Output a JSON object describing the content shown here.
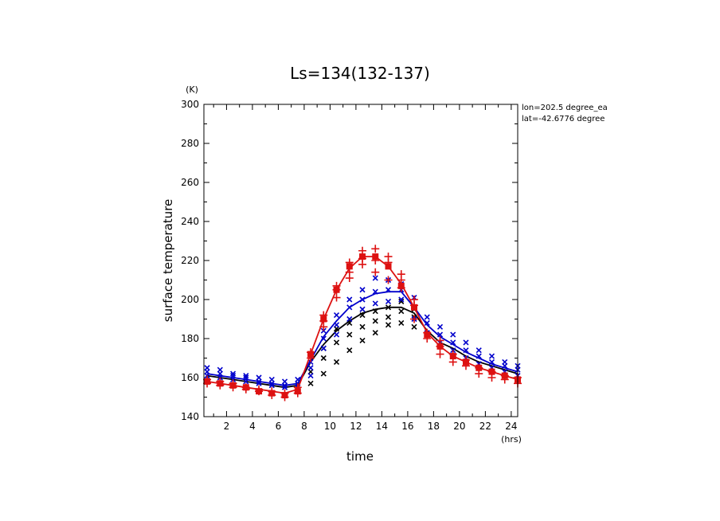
{
  "chart_data": {
    "type": "line",
    "title": "Ls=134(132-137)",
    "xlabel": "time",
    "ylabel": "surface temperature",
    "x_unit": "(hrs)",
    "y_unit": "(K)",
    "xlim": [
      0.25,
      24.5
    ],
    "ylim": [
      140,
      300
    ],
    "xticks": [
      2,
      4,
      6,
      8,
      10,
      12,
      14,
      16,
      18,
      20,
      22,
      24
    ],
    "yticks": [
      140,
      160,
      180,
      200,
      220,
      240,
      260,
      280,
      300
    ],
    "annotations": [
      "lon=202.5 degree_ea",
      "lat=-42.6776 degree"
    ],
    "x": [
      0.5,
      1.5,
      2.5,
      3.5,
      4.5,
      5.5,
      6.5,
      7.5,
      8.5,
      9.5,
      10.5,
      11.5,
      12.5,
      13.5,
      14.5,
      15.5,
      16.5,
      17.5,
      18.5,
      19.5,
      20.5,
      21.5,
      22.5,
      23.5,
      24.5
    ],
    "series": [
      {
        "color": "#000000",
        "line": [
          161,
          160,
          159,
          158,
          157,
          156,
          155,
          156,
          168,
          177,
          184,
          189,
          193,
          195,
          196,
          196,
          193,
          184,
          178,
          175,
          171,
          168,
          166,
          164,
          162
        ],
        "points": [
          [
            9.5,
            162
          ],
          [
            9.5,
            170
          ],
          [
            9.5,
            175
          ],
          [
            10.5,
            168
          ],
          [
            10.5,
            178
          ],
          [
            10.5,
            185
          ],
          [
            11.5,
            174
          ],
          [
            11.5,
            182
          ],
          [
            11.5,
            188
          ],
          [
            12.5,
            179
          ],
          [
            12.5,
            186
          ],
          [
            12.5,
            192
          ],
          [
            13.5,
            183
          ],
          [
            13.5,
            189
          ],
          [
            13.5,
            194
          ],
          [
            14.5,
            187
          ],
          [
            14.5,
            191
          ],
          [
            14.5,
            196
          ],
          [
            15.5,
            188
          ],
          [
            15.5,
            194
          ],
          [
            15.5,
            199
          ],
          [
            16.5,
            186
          ],
          [
            16.5,
            191
          ],
          [
            16.5,
            195
          ],
          [
            8.5,
            157
          ],
          [
            8.5,
            163
          ],
          [
            7.5,
            153
          ],
          [
            7.5,
            156
          ]
        ]
      },
      {
        "color": "#0000cc",
        "line": [
          162,
          161,
          160,
          159,
          158,
          157,
          156,
          157,
          169,
          181,
          189,
          196,
          200,
          203,
          204,
          204,
          196,
          187,
          181,
          177,
          173,
          170,
          167,
          165,
          163
        ],
        "points": [
          [
            0.5,
            161
          ],
          [
            0.5,
            163
          ],
          [
            0.5,
            165
          ],
          [
            1.5,
            160
          ],
          [
            1.5,
            162
          ],
          [
            1.5,
            164
          ],
          [
            2.5,
            159
          ],
          [
            2.5,
            161
          ],
          [
            2.5,
            162
          ],
          [
            3.5,
            158
          ],
          [
            3.5,
            160
          ],
          [
            3.5,
            161
          ],
          [
            4.5,
            157
          ],
          [
            4.5,
            158
          ],
          [
            4.5,
            160
          ],
          [
            5.5,
            156
          ],
          [
            5.5,
            157
          ],
          [
            5.5,
            159
          ],
          [
            6.5,
            155
          ],
          [
            6.5,
            156
          ],
          [
            6.5,
            158
          ],
          [
            7.5,
            155
          ],
          [
            7.5,
            157
          ],
          [
            7.5,
            159
          ],
          [
            8.5,
            161
          ],
          [
            8.5,
            165
          ],
          [
            8.5,
            168
          ],
          [
            9.5,
            175
          ],
          [
            9.5,
            180
          ],
          [
            9.5,
            184
          ],
          [
            10.5,
            182
          ],
          [
            10.5,
            187
          ],
          [
            10.5,
            192
          ],
          [
            11.5,
            190
          ],
          [
            11.5,
            196
          ],
          [
            11.5,
            200
          ],
          [
            12.5,
            195
          ],
          [
            12.5,
            200
          ],
          [
            12.5,
            205
          ],
          [
            13.5,
            198
          ],
          [
            13.5,
            204
          ],
          [
            13.5,
            211
          ],
          [
            14.5,
            199
          ],
          [
            14.5,
            205
          ],
          [
            14.5,
            210
          ],
          [
            15.5,
            200
          ],
          [
            15.5,
            205
          ],
          [
            15.5,
            208
          ],
          [
            16.5,
            190
          ],
          [
            16.5,
            196
          ],
          [
            16.5,
            201
          ],
          [
            17.5,
            183
          ],
          [
            17.5,
            188
          ],
          [
            17.5,
            191
          ],
          [
            18.5,
            178
          ],
          [
            18.5,
            182
          ],
          [
            18.5,
            186
          ],
          [
            19.5,
            174
          ],
          [
            19.5,
            178
          ],
          [
            19.5,
            182
          ],
          [
            20.5,
            170
          ],
          [
            20.5,
            174
          ],
          [
            20.5,
            178
          ],
          [
            21.5,
            167
          ],
          [
            21.5,
            171
          ],
          [
            21.5,
            174
          ],
          [
            22.5,
            165
          ],
          [
            22.5,
            168
          ],
          [
            22.5,
            171
          ],
          [
            23.5,
            163
          ],
          [
            23.5,
            166
          ],
          [
            23.5,
            168
          ],
          [
            24.5,
            161
          ],
          [
            24.5,
            164
          ],
          [
            24.5,
            166
          ]
        ]
      },
      {
        "color": "#dd1111",
        "line": [
          158,
          157,
          156,
          155,
          154,
          153,
          152,
          154,
          172,
          190,
          205,
          216,
          222,
          222,
          217,
          208,
          196,
          183,
          176,
          171,
          168,
          165,
          163,
          161,
          159
        ],
        "markers": [
          158,
          157,
          156,
          155,
          153,
          152,
          151,
          153,
          172,
          190,
          205,
          217,
          222,
          222,
          217,
          207,
          196,
          182,
          176,
          171,
          168,
          165,
          163,
          161,
          159
        ],
        "points": [
          [
            0.5,
            157
          ],
          [
            0.5,
            159
          ],
          [
            1.5,
            156
          ],
          [
            1.5,
            158
          ],
          [
            2.5,
            155
          ],
          [
            2.5,
            157
          ],
          [
            3.5,
            154
          ],
          [
            3.5,
            155
          ],
          [
            4.5,
            153
          ],
          [
            4.5,
            154
          ],
          [
            5.5,
            151
          ],
          [
            5.5,
            153
          ],
          [
            6.5,
            150
          ],
          [
            6.5,
            152
          ],
          [
            7.5,
            152
          ],
          [
            7.5,
            155
          ],
          [
            8.5,
            170
          ],
          [
            8.5,
            173
          ],
          [
            9.5,
            186
          ],
          [
            9.5,
            189
          ],
          [
            9.5,
            192
          ],
          [
            10.5,
            201
          ],
          [
            10.5,
            205
          ],
          [
            10.5,
            207
          ],
          [
            11.5,
            211
          ],
          [
            11.5,
            214
          ],
          [
            11.5,
            219
          ],
          [
            12.5,
            218
          ],
          [
            12.5,
            221
          ],
          [
            12.5,
            225
          ],
          [
            13.5,
            214
          ],
          [
            13.5,
            220
          ],
          [
            13.5,
            226
          ],
          [
            14.5,
            210
          ],
          [
            14.5,
            219
          ],
          [
            14.5,
            222
          ],
          [
            15.5,
            206
          ],
          [
            15.5,
            210
          ],
          [
            15.5,
            213
          ],
          [
            16.5,
            190
          ],
          [
            16.5,
            197
          ],
          [
            16.5,
            200
          ],
          [
            17.5,
            180
          ],
          [
            17.5,
            183
          ],
          [
            18.5,
            172
          ],
          [
            18.5,
            176
          ],
          [
            18.5,
            179
          ],
          [
            19.5,
            168
          ],
          [
            19.5,
            172
          ],
          [
            20.5,
            166
          ],
          [
            20.5,
            169
          ],
          [
            21.5,
            162
          ],
          [
            21.5,
            165
          ],
          [
            22.5,
            160
          ],
          [
            22.5,
            163
          ],
          [
            23.5,
            159
          ],
          [
            23.5,
            161
          ],
          [
            24.5,
            157
          ],
          [
            24.5,
            160
          ]
        ]
      }
    ]
  }
}
